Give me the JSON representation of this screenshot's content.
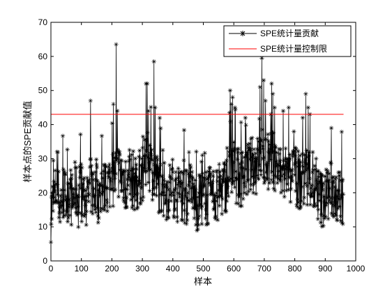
{
  "chart_data": {
    "type": "line",
    "title": "",
    "xlabel": "样本",
    "ylabel": "样本点的SPE贡献值",
    "xlim": [
      0,
      1000
    ],
    "ylim": [
      0,
      70
    ],
    "x_ticks": [
      "0",
      "100",
      "200",
      "300",
      "400",
      "500",
      "600",
      "700",
      "800",
      "900",
      "1000"
    ],
    "y_ticks": [
      "0",
      "10",
      "20",
      "30",
      "40",
      "50",
      "60",
      "70"
    ],
    "grid": false,
    "legend_position": "top-right",
    "series": [
      {
        "name": "SPE统计量贡献",
        "style": "line-with-star-markers",
        "color": "#000000",
        "sample_count": 960,
        "anchors": [
          [
            0,
            14
          ],
          [
            10,
            18
          ],
          [
            20,
            22
          ],
          [
            30,
            16
          ],
          [
            40,
            20
          ],
          [
            50,
            18
          ],
          [
            60,
            22
          ],
          [
            70,
            17
          ],
          [
            80,
            21
          ],
          [
            90,
            18
          ],
          [
            100,
            20
          ],
          [
            110,
            19
          ],
          [
            120,
            17
          ],
          [
            130,
            22
          ],
          [
            140,
            20
          ],
          [
            150,
            21
          ],
          [
            160,
            18
          ],
          [
            170,
            22
          ],
          [
            180,
            20
          ],
          [
            190,
            23
          ],
          [
            200,
            24
          ],
          [
            210,
            25
          ],
          [
            220,
            27
          ],
          [
            230,
            25
          ],
          [
            240,
            24
          ],
          [
            250,
            22
          ],
          [
            260,
            23
          ],
          [
            270,
            24
          ],
          [
            280,
            22
          ],
          [
            290,
            24
          ],
          [
            300,
            26
          ],
          [
            310,
            28
          ],
          [
            320,
            30
          ],
          [
            330,
            27
          ],
          [
            340,
            25
          ],
          [
            350,
            23
          ],
          [
            360,
            22
          ],
          [
            370,
            21
          ],
          [
            380,
            20
          ],
          [
            390,
            21
          ],
          [
            400,
            22
          ],
          [
            410,
            20
          ],
          [
            420,
            19
          ],
          [
            430,
            20
          ],
          [
            440,
            19
          ],
          [
            450,
            18
          ],
          [
            460,
            19
          ],
          [
            470,
            18
          ],
          [
            480,
            17
          ],
          [
            490,
            18
          ],
          [
            500,
            19
          ],
          [
            510,
            18
          ],
          [
            520,
            19
          ],
          [
            530,
            20
          ],
          [
            540,
            19
          ],
          [
            550,
            20
          ],
          [
            560,
            21
          ],
          [
            570,
            22
          ],
          [
            580,
            24
          ],
          [
            590,
            26
          ],
          [
            600,
            27
          ],
          [
            610,
            25
          ],
          [
            620,
            24
          ],
          [
            630,
            25
          ],
          [
            640,
            26
          ],
          [
            650,
            27
          ],
          [
            660,
            28
          ],
          [
            670,
            27
          ],
          [
            680,
            29
          ],
          [
            690,
            31
          ],
          [
            700,
            30
          ],
          [
            710,
            28
          ],
          [
            720,
            29
          ],
          [
            730,
            30
          ],
          [
            740,
            27
          ],
          [
            750,
            26
          ],
          [
            760,
            25
          ],
          [
            770,
            24
          ],
          [
            780,
            23
          ],
          [
            790,
            24
          ],
          [
            800,
            25
          ],
          [
            810,
            24
          ],
          [
            820,
            23
          ],
          [
            830,
            24
          ],
          [
            840,
            25
          ],
          [
            850,
            24
          ],
          [
            860,
            22
          ],
          [
            870,
            20
          ],
          [
            880,
            19
          ],
          [
            890,
            18
          ],
          [
            900,
            19
          ],
          [
            910,
            20
          ],
          [
            920,
            21
          ],
          [
            930,
            20
          ],
          [
            940,
            19
          ],
          [
            950,
            18
          ],
          [
            960,
            18
          ]
        ],
        "spikes": [
          [
            130,
            47
          ],
          [
            205,
            46
          ],
          [
            214,
            63.5
          ],
          [
            218,
            44
          ],
          [
            312,
            52
          ],
          [
            316,
            52
          ],
          [
            320,
            44
          ],
          [
            338,
            58.5
          ],
          [
            342,
            45
          ],
          [
            588,
            50
          ],
          [
            592,
            46
          ],
          [
            596,
            48
          ],
          [
            604,
            45
          ],
          [
            686,
            51
          ],
          [
            692,
            59.5
          ],
          [
            698,
            53
          ],
          [
            704,
            47
          ],
          [
            724,
            52
          ],
          [
            728,
            49
          ],
          [
            734,
            45
          ],
          [
            762,
            44
          ],
          [
            780,
            45
          ],
          [
            826,
            42
          ],
          [
            836,
            49
          ],
          [
            844,
            45
          ],
          [
            850,
            43
          ],
          [
            920,
            39
          ]
        ]
      },
      {
        "name": "SPE统计量控制限",
        "style": "line",
        "color": "#ff0000",
        "value": 43
      }
    ]
  }
}
